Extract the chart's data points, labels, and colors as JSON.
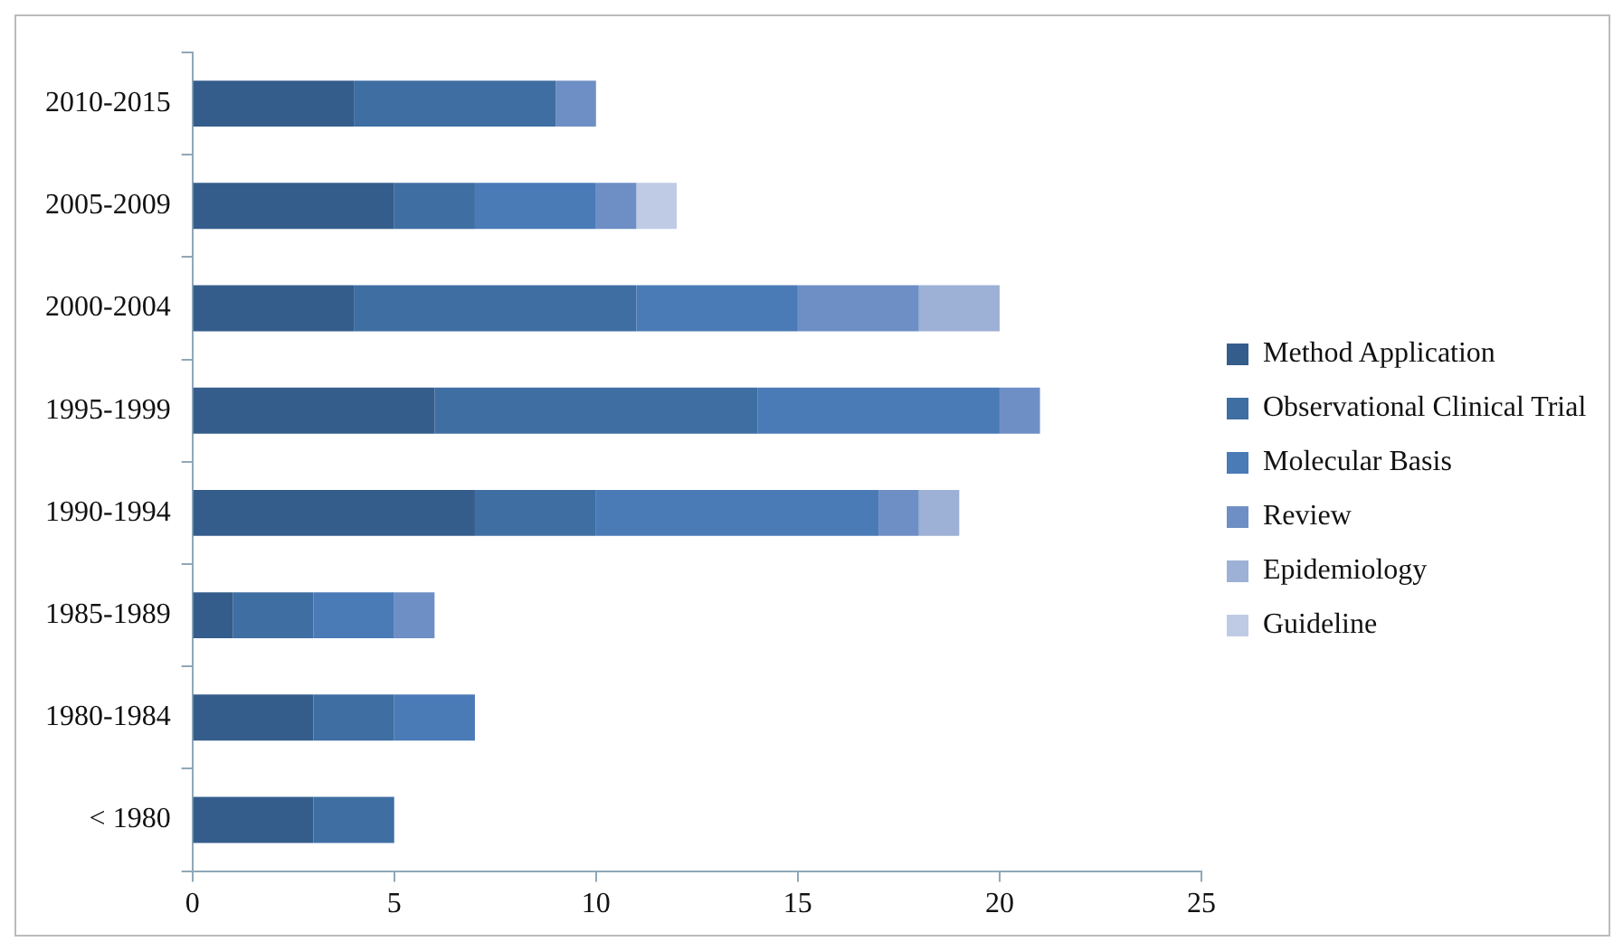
{
  "chart_data": {
    "type": "bar",
    "orientation": "horizontal",
    "stacked": true,
    "categories": [
      "2010-2015",
      "2005-2009",
      "2000-2004",
      "1995-1999",
      "1990-1994",
      "1985-1989",
      "1980-1984",
      "< 1980"
    ],
    "series": [
      {
        "name": "Method Application",
        "color": "#345d8c",
        "values": [
          4,
          5,
          4,
          6,
          7,
          1,
          3,
          3
        ]
      },
      {
        "name": "Observational Clinical Trial",
        "color": "#3f6ea3",
        "values": [
          5,
          2,
          7,
          8,
          3,
          2,
          2,
          2
        ]
      },
      {
        "name": "Molecular Basis",
        "color": "#4a7bb7",
        "values": [
          0,
          3,
          4,
          6,
          7,
          2,
          2,
          0
        ]
      },
      {
        "name": "Review",
        "color": "#6e8fc5",
        "values": [
          1,
          1,
          3,
          1,
          1,
          1,
          0,
          0
        ]
      },
      {
        "name": "Epidemiology",
        "color": "#9db0d5",
        "values": [
          0,
          0,
          2,
          0,
          1,
          0,
          0,
          0
        ]
      },
      {
        "name": "Guideline",
        "color": "#bfcbe4",
        "values": [
          0,
          1,
          0,
          0,
          0,
          0,
          0,
          0
        ]
      }
    ],
    "xlim": [
      0,
      25
    ],
    "xticks": [
      0,
      5,
      10,
      15,
      20,
      25
    ],
    "grid": false,
    "legend": "right"
  }
}
